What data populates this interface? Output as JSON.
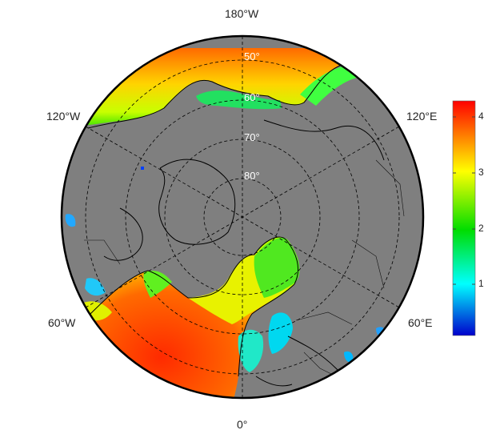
{
  "map": {
    "projection": "north-polar-stereographic",
    "land_color": "#7f7f7f",
    "ocean_missing_color": "#7f7f7f",
    "graticule_style": "dashed",
    "lon_labels": {
      "top": "180°W",
      "left_upper": "120°W",
      "right_upper": "120°E",
      "left_lower": "60°W",
      "right_lower": "60°E",
      "bottom": "0°"
    },
    "lat_labels": [
      "50°",
      "60°",
      "70°",
      "80°"
    ]
  },
  "colorbar": {
    "min": 0,
    "max": 4.2,
    "ticks": [
      "1",
      "2",
      "3",
      "4"
    ],
    "colors": [
      "#0000cc",
      "#00ffff",
      "#00dd00",
      "#ffff00",
      "#ff0000"
    ]
  }
}
